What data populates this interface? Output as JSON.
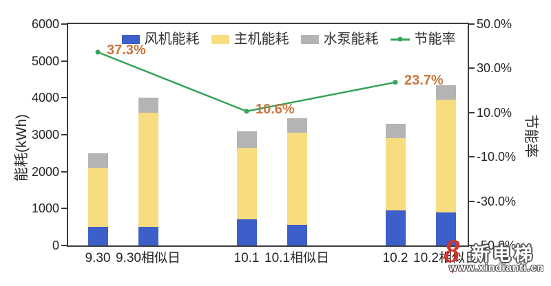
{
  "colors": {
    "fan_blue": "#3C5FCA",
    "host_yellow": "#F8DD80",
    "pump_gray": "#B4B4B4",
    "rate_green": "#33A456",
    "rate_label_orange": "#C8763D",
    "axis": "#3C3C3C",
    "watermark_red": "#D2342A"
  },
  "chart_data": {
    "type": "bar",
    "subtype": "stacked-bars-with-line-overlay",
    "title": "",
    "categories": [
      "9.30",
      "9.30相似日",
      "10.1",
      "10.1相似日",
      "10.2",
      "10.2相似日"
    ],
    "bar_series": [
      {
        "name": "风机能耗",
        "color": "#3C5FCA",
        "values": [
          500,
          500,
          700,
          550,
          950,
          900
        ]
      },
      {
        "name": "主机能耗",
        "color": "#F8DD80",
        "values": [
          1600,
          3100,
          1950,
          2500,
          1950,
          3050
        ]
      },
      {
        "name": "水泵能耗",
        "color": "#B4B4B4",
        "values": [
          400,
          400,
          450,
          400,
          400,
          400
        ]
      }
    ],
    "bar_totals": [
      2500,
      4000,
      3100,
      3450,
      3300,
      4350
    ],
    "line_series": {
      "name": "节能率",
      "color": "#33A456",
      "axis": "right",
      "points": [
        {
          "category": "9.30",
          "value": 37.3,
          "label": "37.3%"
        },
        {
          "category": "10.1",
          "value": 10.6,
          "label": "10.6%"
        },
        {
          "category": "10.2",
          "value": 23.7,
          "label": "23.7%"
        }
      ]
    },
    "ylabel_left": "能耗(kWh)",
    "ylabel_right": "节能率",
    "ylim_left": [
      0,
      6000
    ],
    "ylim_right_percent": [
      -50,
      50
    ],
    "left_ticks": [
      "6000",
      "5000",
      "4000",
      "3000",
      "2000",
      "1000",
      "0"
    ],
    "right_ticks": [
      "50.0%",
      "30.0%",
      "10.0%",
      "-10.0%",
      "-30.0%",
      "-50.0%"
    ],
    "grid": "off",
    "legend_position": "top-center-inside"
  },
  "watermark": {
    "logo": "8",
    "heart": "♥",
    "name": "新电梯",
    "url": "www.xindianti.cn"
  }
}
